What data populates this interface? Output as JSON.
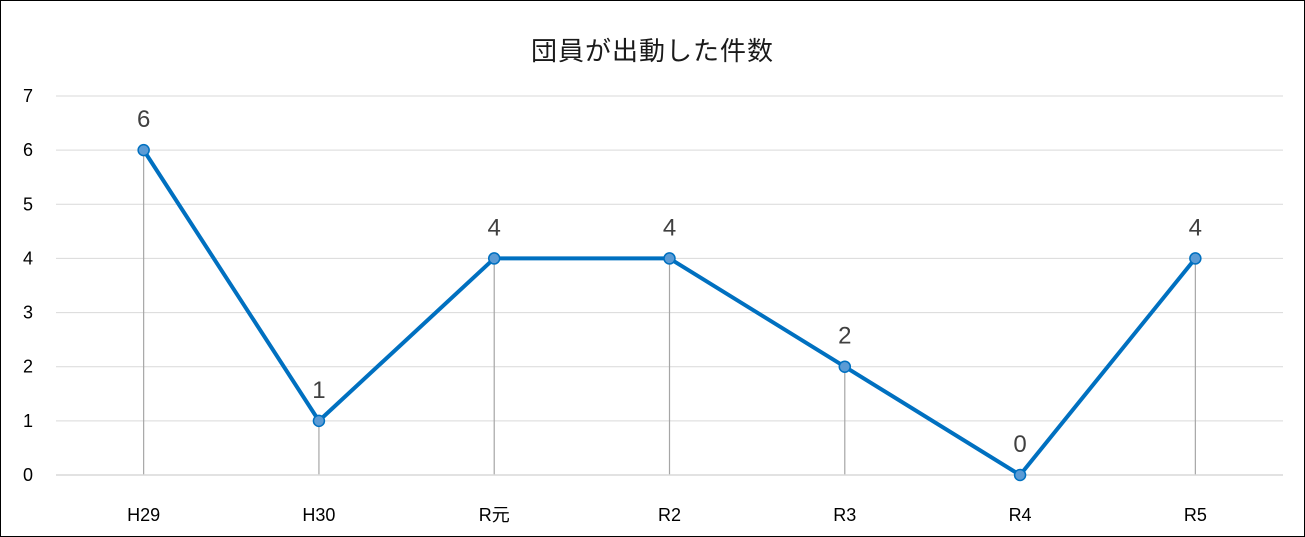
{
  "chart_data": {
    "type": "line",
    "title": "団員が出動した件数",
    "categories": [
      "H29",
      "H30",
      "R元",
      "R2",
      "R3",
      "R4",
      "R5"
    ],
    "series": [
      {
        "values": [
          6,
          1,
          4,
          4,
          2,
          0,
          4
        ],
        "color": "#0070C0"
      }
    ],
    "data_labels": [
      "6",
      "1",
      "4",
      "4",
      "2",
      "0",
      "4"
    ],
    "ylim": [
      0,
      7
    ],
    "y_ticks": [
      "0",
      "1",
      "2",
      "3",
      "4",
      "5",
      "6",
      "7"
    ],
    "xlabel": "",
    "ylabel": "",
    "grid": true,
    "drop_lines": true,
    "legend": "none",
    "colors": {
      "line": "#0070C0",
      "marker_fill": "#5B9BD5",
      "gridline": "#D9D9D9",
      "drop_line": "#A6A6A6",
      "data_label": "#404040"
    }
  }
}
